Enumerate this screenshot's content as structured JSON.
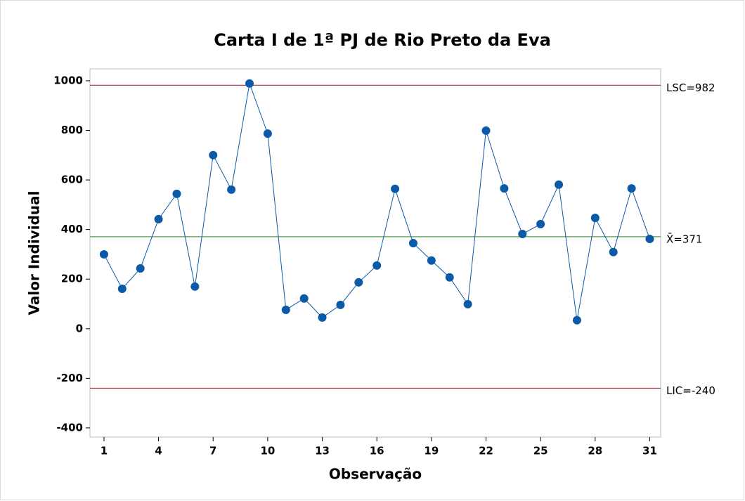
{
  "chart_data": {
    "type": "control",
    "title": "Carta I de 1ª PJ de Rio Preto da Eva",
    "x_label": "Observação",
    "y_label": "Valor Individual",
    "x": [
      1,
      2,
      3,
      4,
      5,
      6,
      7,
      8,
      9,
      10,
      11,
      12,
      13,
      14,
      15,
      16,
      17,
      18,
      19,
      20,
      21,
      22,
      23,
      24,
      25,
      26,
      27,
      28,
      29,
      30,
      31
    ],
    "series": [
      {
        "name": "Valor Individual",
        "color": "#0b5aa8",
        "values": [
          300,
          161,
          243,
          442,
          544,
          170,
          700,
          561,
          989,
          787,
          76,
          122,
          45,
          96,
          187,
          255,
          564,
          345,
          275,
          207,
          99,
          799,
          566,
          382,
          422,
          581,
          34,
          447,
          309,
          566,
          362
        ]
      }
    ],
    "control_lines": [
      {
        "value": 982,
        "label": "LSC=982",
        "color": "#a0323c"
      },
      {
        "value": 371,
        "label": "X̄=371",
        "color": "#4d9e4d"
      },
      {
        "value": -240,
        "label": "LIC=-240",
        "color": "#a0323c"
      }
    ],
    "xlim": [
      0.23,
      31.6
    ],
    "ylim": [
      -437,
      1048
    ],
    "xticks": [
      1,
      4,
      7,
      10,
      13,
      16,
      19,
      22,
      25,
      28,
      31
    ],
    "yticks": [
      -400,
      -200,
      0,
      200,
      400,
      600,
      800,
      1000
    ]
  }
}
